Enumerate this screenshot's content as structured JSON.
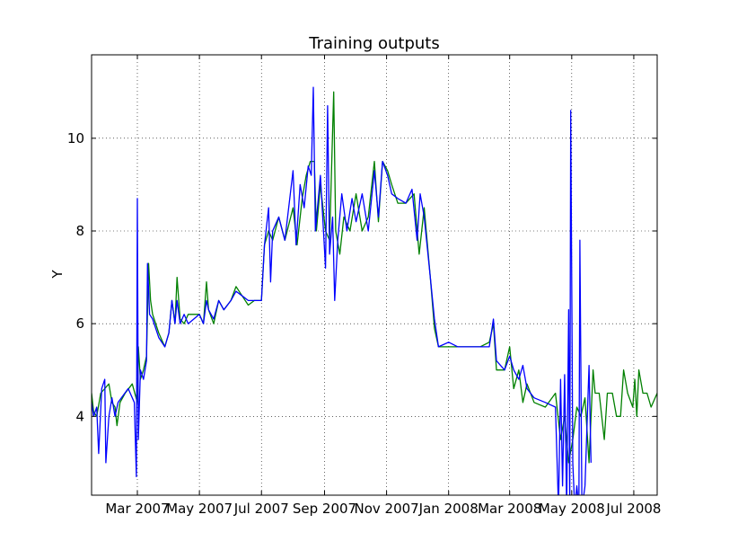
{
  "chart_data": {
    "type": "line",
    "title": "Training outputs",
    "xlabel": "",
    "ylabel": "Y",
    "xlim": [
      "2007-01-15",
      "2008-07-24"
    ],
    "ylim": [
      2.3,
      11.8
    ],
    "x_ticks": [
      {
        "date": "2007-03-01",
        "label": "Mar 2007"
      },
      {
        "date": "2007-05-01",
        "label": "May 2007"
      },
      {
        "date": "2007-07-01",
        "label": "Jul 2007"
      },
      {
        "date": "2007-09-01",
        "label": "Sep 2007"
      },
      {
        "date": "2007-11-01",
        "label": "Nov 2007"
      },
      {
        "date": "2008-01-01",
        "label": "Jan 2008"
      },
      {
        "date": "2008-03-01",
        "label": "Mar 2008"
      },
      {
        "date": "2008-05-01",
        "label": "May 2008"
      },
      {
        "date": "2008-07-01",
        "label": "Jul 2008"
      }
    ],
    "y_ticks": [
      4,
      6,
      8,
      10
    ],
    "grid": true,
    "series": [
      {
        "color": "#008000",
        "points": [
          [
            "2007-01-15",
            4.5
          ],
          [
            "2007-01-17",
            4.1
          ],
          [
            "2007-01-20",
            4.0
          ],
          [
            "2007-01-24",
            4.5
          ],
          [
            "2007-02-01",
            4.7
          ],
          [
            "2007-02-04",
            4.3
          ],
          [
            "2007-02-07",
            4.2
          ],
          [
            "2007-02-09",
            3.8
          ],
          [
            "2007-02-12",
            4.3
          ],
          [
            "2007-02-17",
            4.5
          ],
          [
            "2007-02-24",
            4.7
          ],
          [
            "2007-03-01",
            4.3
          ],
          [
            "2007-03-02",
            5.5
          ],
          [
            "2007-03-04",
            4.8
          ],
          [
            "2007-03-07",
            5.0
          ],
          [
            "2007-03-10",
            5.3
          ],
          [
            "2007-03-12",
            7.3
          ],
          [
            "2007-03-14",
            6.5
          ],
          [
            "2007-03-16",
            6.2
          ],
          [
            "2007-03-22",
            5.8
          ],
          [
            "2007-03-28",
            5.5
          ],
          [
            "2007-04-01",
            5.8
          ],
          [
            "2007-04-04",
            6.5
          ],
          [
            "2007-04-07",
            6.0
          ],
          [
            "2007-04-09",
            7.0
          ],
          [
            "2007-04-12",
            6.1
          ],
          [
            "2007-04-16",
            6.0
          ],
          [
            "2007-04-20",
            6.2
          ],
          [
            "2007-05-01",
            6.2
          ],
          [
            "2007-05-05",
            6.0
          ],
          [
            "2007-05-08",
            6.9
          ],
          [
            "2007-05-10",
            6.3
          ],
          [
            "2007-05-15",
            6.0
          ],
          [
            "2007-05-20",
            6.5
          ],
          [
            "2007-05-25",
            6.3
          ],
          [
            "2007-06-01",
            6.5
          ],
          [
            "2007-06-06",
            6.8
          ],
          [
            "2007-06-12",
            6.6
          ],
          [
            "2007-06-18",
            6.4
          ],
          [
            "2007-06-24",
            6.5
          ],
          [
            "2007-07-01",
            6.5
          ],
          [
            "2007-07-04",
            7.7
          ],
          [
            "2007-07-08",
            8.0
          ],
          [
            "2007-07-12",
            7.8
          ],
          [
            "2007-07-18",
            8.3
          ],
          [
            "2007-07-24",
            7.8
          ],
          [
            "2007-08-01",
            8.5
          ],
          [
            "2007-08-05",
            7.7
          ],
          [
            "2007-08-10",
            8.7
          ],
          [
            "2007-08-14",
            9.2
          ],
          [
            "2007-08-18",
            9.5
          ],
          [
            "2007-08-22",
            9.5
          ],
          [
            "2007-08-24",
            8.0
          ],
          [
            "2007-08-28",
            9.0
          ],
          [
            "2007-09-02",
            8.0
          ],
          [
            "2007-09-06",
            7.8
          ],
          [
            "2007-09-10",
            11.0
          ],
          [
            "2007-09-12",
            8.0
          ],
          [
            "2007-09-16",
            7.5
          ],
          [
            "2007-09-20",
            8.3
          ],
          [
            "2007-09-26",
            8.0
          ],
          [
            "2007-10-02",
            8.8
          ],
          [
            "2007-10-08",
            8.0
          ],
          [
            "2007-10-14",
            8.3
          ],
          [
            "2007-10-20",
            9.5
          ],
          [
            "2007-10-24",
            8.2
          ],
          [
            "2007-10-28",
            9.5
          ],
          [
            "2007-11-02",
            9.3
          ],
          [
            "2007-11-06",
            9.0
          ],
          [
            "2007-11-12",
            8.6
          ],
          [
            "2007-11-20",
            8.6
          ],
          [
            "2007-11-28",
            8.8
          ],
          [
            "2007-12-03",
            7.5
          ],
          [
            "2007-12-08",
            8.5
          ],
          [
            "2007-12-14",
            7.0
          ],
          [
            "2007-12-18",
            5.9
          ],
          [
            "2007-12-22",
            5.5
          ],
          [
            "2008-01-01",
            5.5
          ],
          [
            "2008-01-10",
            5.5
          ],
          [
            "2008-01-20",
            5.5
          ],
          [
            "2008-02-01",
            5.5
          ],
          [
            "2008-02-10",
            5.6
          ],
          [
            "2008-02-14",
            6.0
          ],
          [
            "2008-02-17",
            5.0
          ],
          [
            "2008-02-25",
            5.0
          ],
          [
            "2008-03-01",
            5.5
          ],
          [
            "2008-03-05",
            4.6
          ],
          [
            "2008-03-10",
            5.0
          ],
          [
            "2008-03-14",
            4.3
          ],
          [
            "2008-03-18",
            4.7
          ],
          [
            "2008-03-25",
            4.3
          ],
          [
            "2008-04-05",
            4.2
          ],
          [
            "2008-04-15",
            4.5
          ],
          [
            "2008-04-20",
            3.5
          ],
          [
            "2008-04-24",
            4.0
          ],
          [
            "2008-04-28",
            3.0
          ],
          [
            "2008-05-02",
            3.5
          ],
          [
            "2008-05-06",
            4.2
          ],
          [
            "2008-05-10",
            4.0
          ],
          [
            "2008-05-14",
            4.4
          ],
          [
            "2008-05-18",
            3.0
          ],
          [
            "2008-05-22",
            5.0
          ],
          [
            "2008-05-24",
            4.5
          ],
          [
            "2008-05-28",
            4.5
          ],
          [
            "2008-06-02",
            3.5
          ],
          [
            "2008-06-05",
            4.5
          ],
          [
            "2008-06-10",
            4.5
          ],
          [
            "2008-06-14",
            4.0
          ],
          [
            "2008-06-18",
            4.0
          ],
          [
            "2008-06-21",
            5.0
          ],
          [
            "2008-06-25",
            4.5
          ],
          [
            "2008-06-30",
            4.2
          ],
          [
            "2008-07-02",
            4.8
          ],
          [
            "2008-07-04",
            4.0
          ],
          [
            "2008-07-06",
            5.0
          ],
          [
            "2008-07-10",
            4.5
          ],
          [
            "2008-07-14",
            4.5
          ],
          [
            "2008-07-18",
            4.2
          ],
          [
            "2008-07-24",
            4.5
          ]
        ]
      },
      {
        "color": "#0000ff",
        "points": [
          [
            "2007-01-15",
            4.3
          ],
          [
            "2007-01-17",
            4.0
          ],
          [
            "2007-01-20",
            4.2
          ],
          [
            "2007-01-22",
            3.2
          ],
          [
            "2007-01-25",
            4.6
          ],
          [
            "2007-01-28",
            4.8
          ],
          [
            "2007-01-29",
            3.0
          ],
          [
            "2007-02-01",
            4.0
          ],
          [
            "2007-02-04",
            4.4
          ],
          [
            "2007-02-07",
            4.0
          ],
          [
            "2007-02-10",
            4.3
          ],
          [
            "2007-02-20",
            4.6
          ],
          [
            "2007-02-26",
            4.3
          ],
          [
            "2007-02-28",
            2.7
          ],
          [
            "2007-03-01",
            8.7
          ],
          [
            "2007-03-02",
            3.5
          ],
          [
            "2007-03-04",
            5.0
          ],
          [
            "2007-03-07",
            4.8
          ],
          [
            "2007-03-10",
            5.2
          ],
          [
            "2007-03-11",
            7.3
          ],
          [
            "2007-03-13",
            6.2
          ],
          [
            "2007-03-16",
            6.1
          ],
          [
            "2007-03-22",
            5.7
          ],
          [
            "2007-03-28",
            5.5
          ],
          [
            "2007-04-01",
            5.8
          ],
          [
            "2007-04-04",
            6.5
          ],
          [
            "2007-04-07",
            6.0
          ],
          [
            "2007-04-09",
            6.5
          ],
          [
            "2007-04-12",
            6.0
          ],
          [
            "2007-04-16",
            6.2
          ],
          [
            "2007-04-20",
            6.0
          ],
          [
            "2007-05-01",
            6.2
          ],
          [
            "2007-05-05",
            6.0
          ],
          [
            "2007-05-08",
            6.5
          ],
          [
            "2007-05-10",
            6.3
          ],
          [
            "2007-05-15",
            6.1
          ],
          [
            "2007-05-20",
            6.5
          ],
          [
            "2007-05-25",
            6.3
          ],
          [
            "2007-06-01",
            6.5
          ],
          [
            "2007-06-06",
            6.7
          ],
          [
            "2007-06-12",
            6.6
          ],
          [
            "2007-06-18",
            6.5
          ],
          [
            "2007-06-24",
            6.5
          ],
          [
            "2007-07-01",
            6.5
          ],
          [
            "2007-07-04",
            7.7
          ],
          [
            "2007-07-08",
            8.5
          ],
          [
            "2007-07-10",
            6.9
          ],
          [
            "2007-07-12",
            8.0
          ],
          [
            "2007-07-18",
            8.3
          ],
          [
            "2007-07-24",
            7.8
          ],
          [
            "2007-08-01",
            9.3
          ],
          [
            "2007-08-04",
            7.7
          ],
          [
            "2007-08-08",
            9.0
          ],
          [
            "2007-08-12",
            8.5
          ],
          [
            "2007-08-16",
            9.4
          ],
          [
            "2007-08-19",
            9.2
          ],
          [
            "2007-08-21",
            11.1
          ],
          [
            "2007-08-23",
            8.0
          ],
          [
            "2007-08-28",
            9.2
          ],
          [
            "2007-09-02",
            7.2
          ],
          [
            "2007-09-04",
            10.7
          ],
          [
            "2007-09-06",
            7.5
          ],
          [
            "2007-09-09",
            8.3
          ],
          [
            "2007-09-11",
            6.5
          ],
          [
            "2007-09-14",
            7.8
          ],
          [
            "2007-09-18",
            8.8
          ],
          [
            "2007-09-23",
            8.0
          ],
          [
            "2007-09-28",
            8.7
          ],
          [
            "2007-10-02",
            8.2
          ],
          [
            "2007-10-08",
            8.8
          ],
          [
            "2007-10-14",
            8.0
          ],
          [
            "2007-10-20",
            9.3
          ],
          [
            "2007-10-24",
            8.3
          ],
          [
            "2007-10-28",
            9.5
          ],
          [
            "2007-11-02",
            9.2
          ],
          [
            "2007-11-06",
            8.8
          ],
          [
            "2007-11-12",
            8.7
          ],
          [
            "2007-11-20",
            8.6
          ],
          [
            "2007-11-26",
            8.9
          ],
          [
            "2007-12-01",
            7.8
          ],
          [
            "2007-12-04",
            8.8
          ],
          [
            "2007-12-08",
            8.3
          ],
          [
            "2007-12-14",
            7.0
          ],
          [
            "2007-12-18",
            6.1
          ],
          [
            "2007-12-22",
            5.5
          ],
          [
            "2008-01-01",
            5.6
          ],
          [
            "2008-01-10",
            5.5
          ],
          [
            "2008-01-20",
            5.5
          ],
          [
            "2008-02-01",
            5.5
          ],
          [
            "2008-02-10",
            5.5
          ],
          [
            "2008-02-14",
            6.1
          ],
          [
            "2008-02-17",
            5.2
          ],
          [
            "2008-02-25",
            5.0
          ],
          [
            "2008-03-01",
            5.3
          ],
          [
            "2008-03-05",
            5.0
          ],
          [
            "2008-03-10",
            4.8
          ],
          [
            "2008-03-14",
            5.1
          ],
          [
            "2008-03-18",
            4.6
          ],
          [
            "2008-03-25",
            4.4
          ],
          [
            "2008-04-05",
            4.3
          ],
          [
            "2008-04-15",
            4.2
          ],
          [
            "2008-04-18",
            2.0
          ],
          [
            "2008-04-20",
            4.8
          ],
          [
            "2008-04-22",
            2.5
          ],
          [
            "2008-04-24",
            4.9
          ],
          [
            "2008-04-26",
            2.0
          ],
          [
            "2008-04-28",
            6.3
          ],
          [
            "2008-04-29",
            2.0
          ],
          [
            "2008-04-30",
            10.6
          ],
          [
            "2008-05-02",
            3.0
          ],
          [
            "2008-05-04",
            2.0
          ],
          [
            "2008-05-06",
            2.5
          ],
          [
            "2008-05-08",
            2.0
          ],
          [
            "2008-05-09",
            7.8
          ],
          [
            "2008-05-11",
            2.0
          ],
          [
            "2008-05-14",
            2.5
          ],
          [
            "2008-05-18",
            5.1
          ],
          [
            "2008-05-20",
            3.0
          ]
        ]
      }
    ]
  }
}
